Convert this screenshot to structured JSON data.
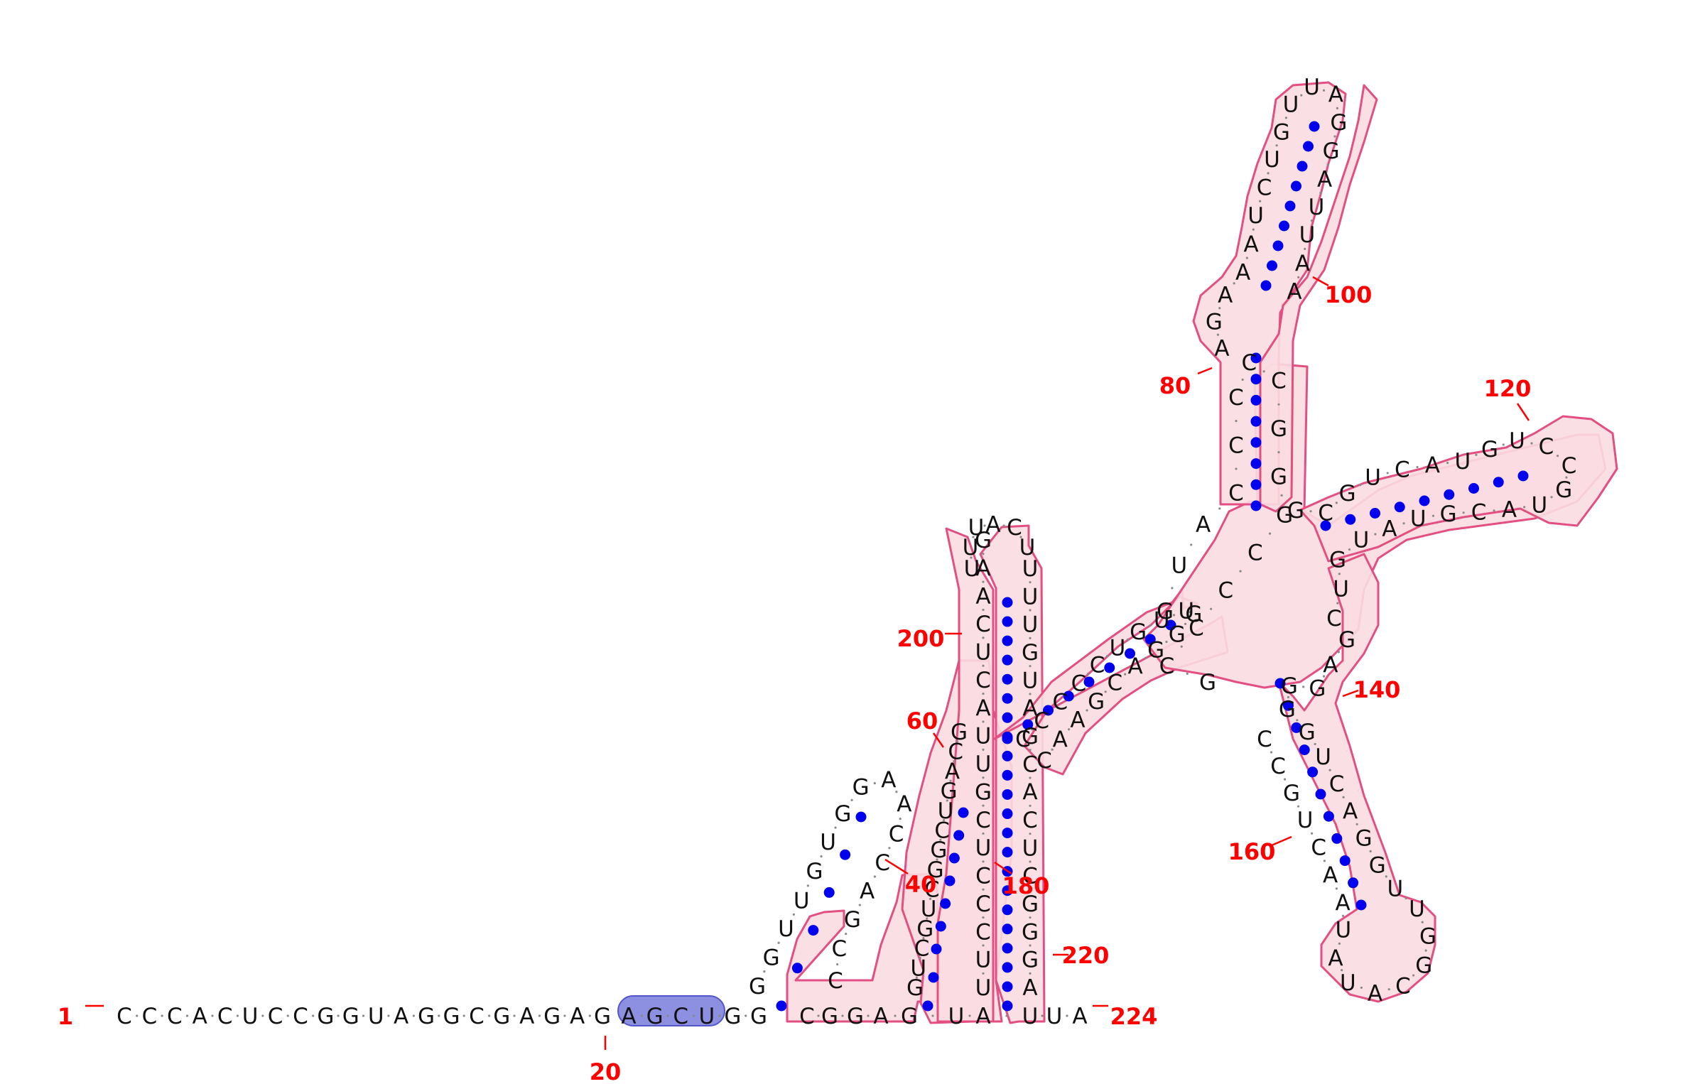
{
  "diagram": {
    "molecule_length": 224,
    "colors": {
      "nucleotide_text": "#111111",
      "backbone_tick": "#8a8a8a",
      "base_pair_dot": "#0000ee",
      "position_label": "#ff0000",
      "helix_fill": "#fadbe1",
      "helix_outline": "#e34f82",
      "highlight_fill": "#8d8fe0",
      "highlight_outline": "#5457c8"
    },
    "highlighted_region": [
      "A",
      "G",
      "C",
      "U"
    ],
    "position_labels": [
      "1",
      "20",
      "40",
      "60",
      "80",
      "100",
      "120",
      "140",
      "160",
      "180",
      "200",
      "220",
      "224"
    ],
    "segments": {
      "five_prime_tail": [
        "C",
        "C",
        "C",
        "A",
        "C",
        "U",
        "C",
        "C",
        "G",
        "G",
        "U",
        "A",
        "G",
        "G",
        "C",
        "G",
        "A",
        "G",
        "A",
        "G"
      ],
      "linker": [
        "A",
        "G",
        "C",
        "U",
        "G",
        "G"
      ],
      "hairpin_left_loop": [
        "G",
        "G",
        "U",
        "U",
        "G",
        "U",
        "G",
        "G",
        "A",
        "A",
        "C",
        "C",
        "A",
        "G",
        "C",
        "C"
      ],
      "helix_bottom": [
        "C",
        "G",
        "G",
        "A",
        "G",
        "U",
        "A",
        "U",
        "U",
        "A"
      ],
      "helix_vertical_5": [
        "G",
        "U",
        "C",
        "G",
        "U",
        "C",
        "G",
        "G",
        "C",
        "U",
        "G",
        "A",
        "C",
        "G"
      ],
      "helix_vertical_3": [
        "U",
        "U",
        "C",
        "C",
        "C",
        "U",
        "C",
        "G",
        "U",
        "U",
        "A",
        "C",
        "U",
        "C",
        "A",
        "A",
        "G"
      ],
      "long_helix_right": [
        "A",
        "G",
        "G",
        "G",
        "C",
        "U",
        "C",
        "A",
        "C",
        "G",
        "A",
        "U",
        "G",
        "U",
        "U",
        "U"
      ],
      "diagonal_stem": [
        "C",
        "C",
        "C",
        "C",
        "C",
        "U",
        "G",
        "U",
        "U",
        "G",
        "G",
        "G",
        "A",
        "C",
        "G",
        "A",
        "A",
        "C"
      ],
      "upper_stem": [
        "G",
        "U",
        "A",
        "C",
        "C",
        "C",
        "C",
        "C",
        "G",
        "G",
        "G",
        "C",
        "C",
        "C",
        "C",
        "G"
      ],
      "upper_loop": [
        "A",
        "G",
        "A",
        "A",
        "A",
        "U",
        "C",
        "U",
        "G",
        "U",
        "U",
        "A",
        "G",
        "G",
        "A",
        "U",
        "U",
        "A",
        "A"
      ],
      "right_arm": [
        "G",
        "C",
        "G",
        "U",
        "C",
        "A",
        "U",
        "G",
        "U",
        "C",
        "C",
        "G",
        "U",
        "A",
        "C",
        "G",
        "U",
        "A",
        "U",
        "G",
        "U",
        "C"
      ],
      "lower_arm": [
        "G",
        "A",
        "G",
        "G",
        "G",
        "G",
        "U",
        "C",
        "A",
        "G",
        "G",
        "U",
        "U",
        "G",
        "G",
        "C",
        "A",
        "U",
        "A",
        "U",
        "A",
        "A",
        "C",
        "U",
        "G",
        "C",
        "C"
      ]
    }
  }
}
